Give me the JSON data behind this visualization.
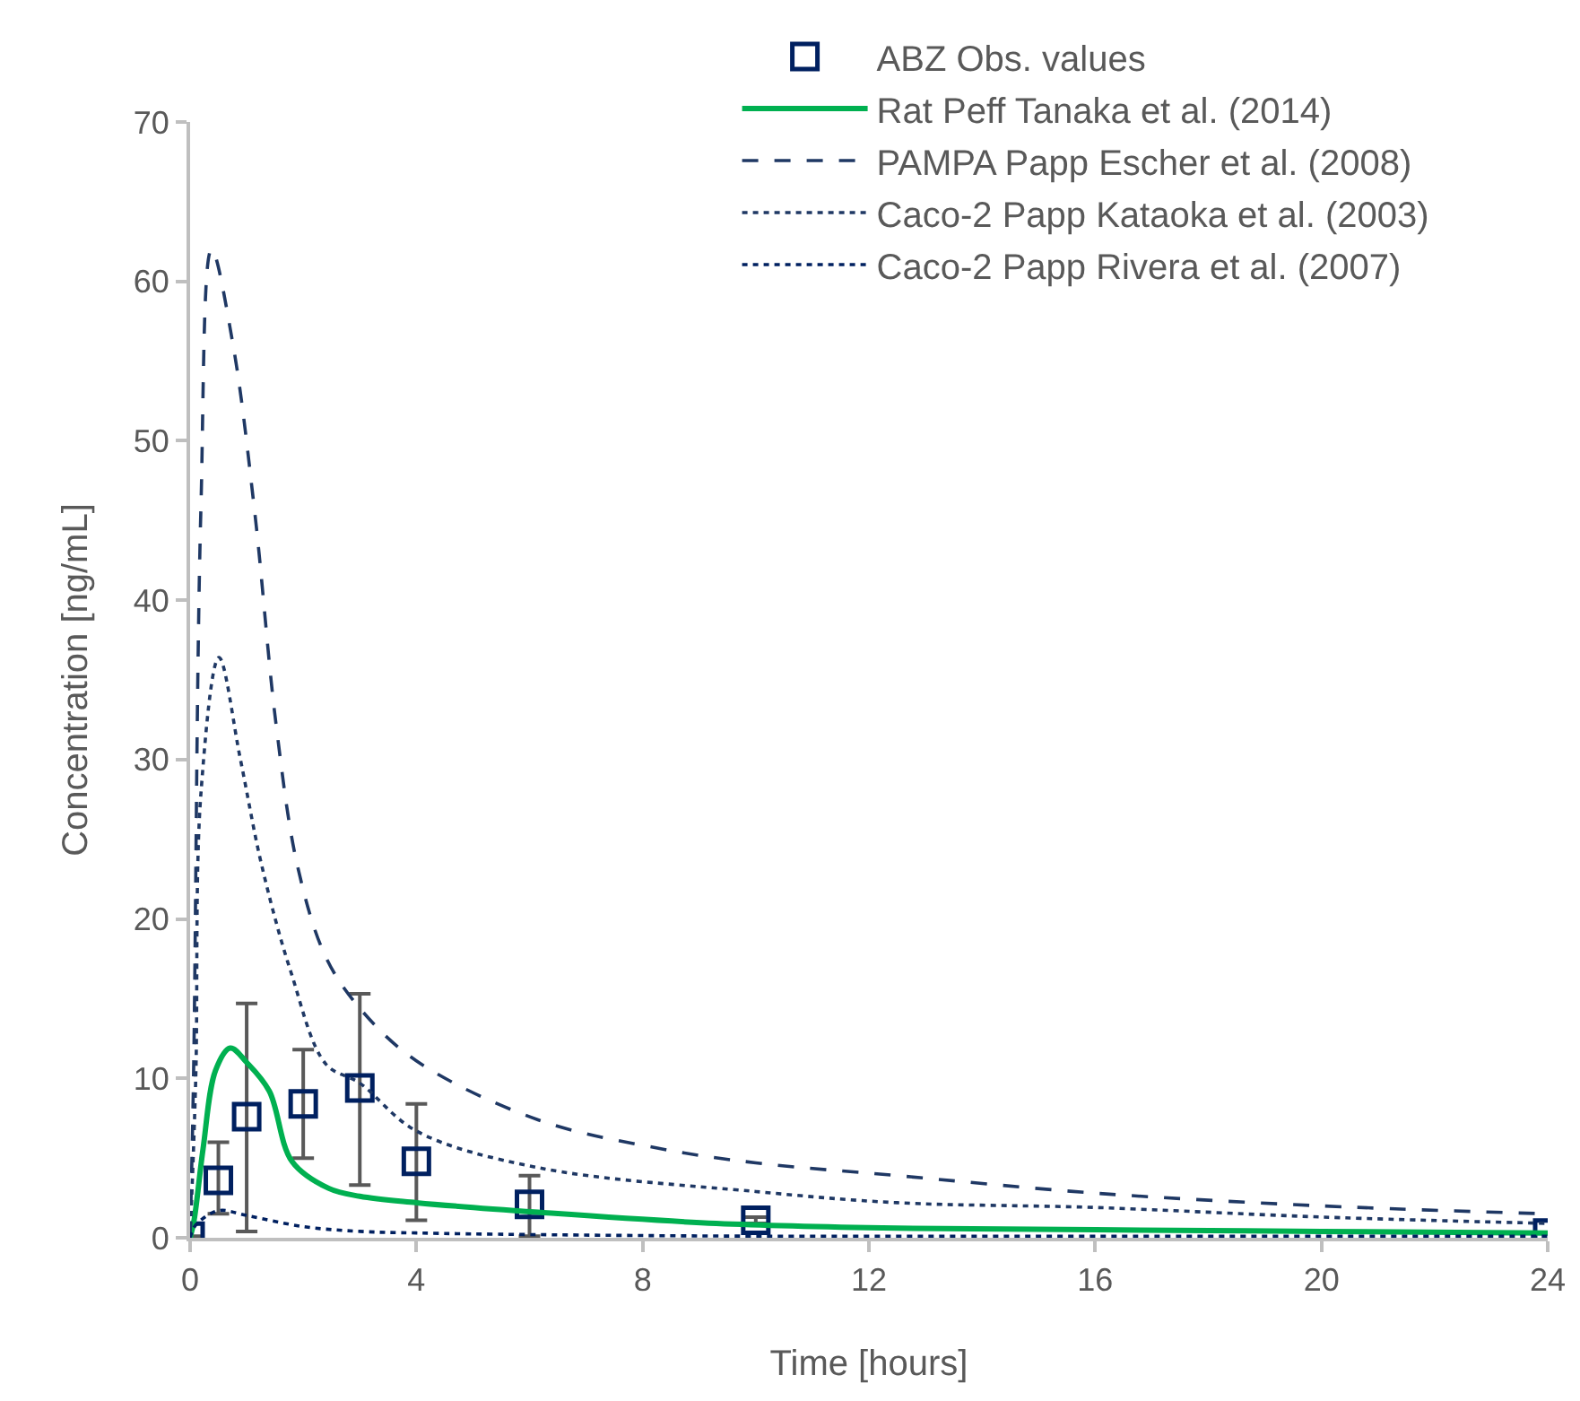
{
  "chart_data": {
    "type": "line",
    "xlabel": "Time [hours]",
    "ylabel": "Concentration [ng/mL]",
    "xlim": [
      0,
      24
    ],
    "xticks": [
      0,
      4,
      8,
      12,
      16,
      20,
      24
    ],
    "ylim": [
      0,
      70
    ],
    "yticks": [
      0,
      10,
      20,
      30,
      40,
      50,
      60,
      70
    ],
    "grid": false,
    "legend": "top right",
    "series": [
      {
        "name": "ABZ Obs. values",
        "type": "scatter",
        "marker": "square",
        "color": "#002060",
        "x": [
          0,
          0.5,
          1,
          2,
          3,
          4,
          6,
          10,
          24
        ],
        "values": [
          0.1,
          3.6,
          7.6,
          8.4,
          9.4,
          4.8,
          2.1,
          1.1,
          0.3
        ],
        "errors": [
          null,
          [
            1.5,
            6
          ],
          [
            0.4,
            14.7
          ],
          [
            5,
            11.8
          ],
          [
            3.3,
            15.3
          ],
          [
            1.1,
            8.4
          ],
          [
            0.1,
            3.9
          ],
          [
            0.9,
            1.3
          ],
          null
        ]
      },
      {
        "name": "Rat Peff Tanaka et al. (2014)",
        "line_style": "solid",
        "color": "#00b050",
        "x": [
          0,
          0.07,
          0.23,
          0.45,
          0.71,
          1,
          1.4,
          1.8,
          2.45,
          3,
          4,
          6.15,
          9.3,
          12.5,
          16,
          20,
          24
        ],
        "values": [
          0,
          1.1,
          5.6,
          10.5,
          11.9,
          11,
          9.2,
          4.8,
          3.1,
          2.6,
          2.2,
          1.6,
          0.9,
          0.6,
          0.5,
          0.4,
          0.3
        ]
      },
      {
        "name": "PAMPA Papp Escher et al. (2008)",
        "line_style": "dashed",
        "color": "#1f3864",
        "x": [
          0,
          0.06,
          0.19,
          0.38,
          0.76,
          1.14,
          1.52,
          1.9,
          2.4,
          3,
          4,
          6.15,
          8.3,
          10,
          12.5,
          16,
          20,
          24
        ],
        "values": [
          0,
          10,
          45.6,
          62,
          56,
          45.6,
          32.2,
          23.3,
          17.6,
          14.4,
          11.1,
          7.4,
          5.6,
          4.7,
          3.9,
          2.8,
          2,
          1.5
        ]
      },
      {
        "name": "Caco-2 Papp Kataoka et al. (2003)",
        "line_style": "dotted",
        "color": "#1f3864",
        "x": [
          0,
          0.1,
          0.19,
          0.51,
          0.89,
          1.27,
          1.78,
          2.4,
          3,
          4,
          6.15,
          10,
          12.5,
          16,
          20,
          24
        ],
        "values": [
          0,
          10,
          27.8,
          36.4,
          30,
          23.3,
          16.7,
          10.9,
          9.7,
          6.7,
          4.4,
          2.9,
          2.2,
          1.9,
          1.3,
          0.9
        ]
      },
      {
        "name": "Caco-2 Papp Rivera et al. (2007)",
        "line_style": "dotted",
        "color": "#002060",
        "x": [
          0,
          0.1,
          0.5,
          1,
          2,
          3,
          4,
          6,
          10,
          16,
          24
        ],
        "values": [
          0,
          0.8,
          1.7,
          1.4,
          0.7,
          0.4,
          0.3,
          0.2,
          0.1,
          0.1,
          0.1
        ]
      }
    ]
  }
}
